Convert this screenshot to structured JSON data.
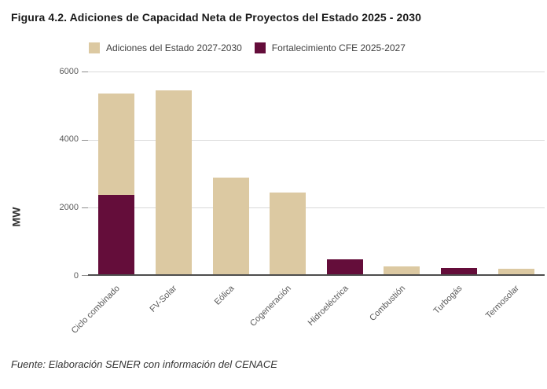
{
  "figure": {
    "title": "Figura 4.2. Adiciones de Capacidad Neta de Proyectos del Estado 2025 - 2030",
    "source": "Fuente: Elaboración SENER con información del CENACE"
  },
  "chart_data": {
    "type": "bar",
    "stacked": true,
    "title": "Figura 4.2. Adiciones de Capacidad Neta de Proyectos del Estado 2025 - 2030",
    "ylabel": "MW",
    "ylim": [
      0,
      6000
    ],
    "yticks": [
      "0",
      "2000",
      "4000",
      "6000"
    ],
    "grid": true,
    "legend_position": "top",
    "categories": [
      "Ciclo combinado",
      "FV-Solar",
      "Eólica",
      "Cogeneración",
      "Hidroeléctrica",
      "Combustión",
      "Turbogás",
      "Termosolar"
    ],
    "series": [
      {
        "name": "Adiciones del Estado 2027-2030",
        "color": "#dcc9a2",
        "values": [
          2970,
          5400,
          2840,
          2400,
          0,
          240,
          0,
          160
        ]
      },
      {
        "name": "Fortalecimiento CFE 2025-2027",
        "color": "#640d3a",
        "values": [
          2330,
          0,
          0,
          0,
          450,
          0,
          190,
          0
        ]
      }
    ],
    "stack_bottom_series": "Fortalecimiento CFE 2025-2027"
  }
}
